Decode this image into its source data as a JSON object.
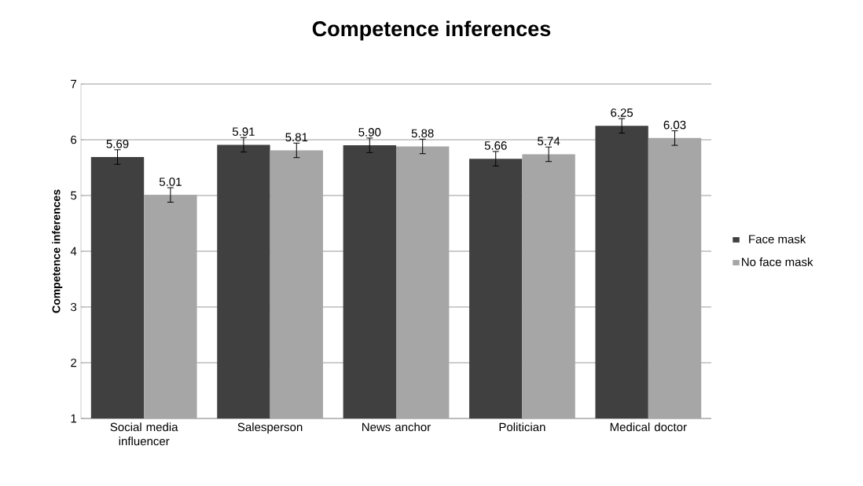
{
  "chart_data": {
    "type": "bar",
    "title": "Competence inferences",
    "ylabel": "Competence inferences",
    "categories": [
      "Social media influencer",
      "Salesperson",
      "News anchor",
      "Politician",
      "Medical doctor"
    ],
    "series": [
      {
        "name": "Face mask",
        "color": "#404040",
        "values": [
          5.69,
          5.91,
          5.9,
          5.66,
          6.25
        ],
        "errors": [
          0.13,
          0.13,
          0.13,
          0.13,
          0.13
        ],
        "value_labels": [
          "5.69",
          "5.91",
          "5.90",
          "5.66",
          "6.25"
        ]
      },
      {
        "name": "No face mask",
        "color": "#a6a6a6",
        "values": [
          5.01,
          5.81,
          5.88,
          5.74,
          6.03
        ],
        "errors": [
          0.13,
          0.13,
          0.13,
          0.13,
          0.13
        ],
        "value_labels": [
          "5.01",
          "5.81",
          "5.88",
          "5.74",
          "6.03"
        ]
      }
    ],
    "ylim": [
      1,
      7
    ],
    "yticks": [
      1,
      2,
      3,
      4,
      5,
      6,
      7
    ],
    "grid": "y",
    "legend": "right"
  }
}
